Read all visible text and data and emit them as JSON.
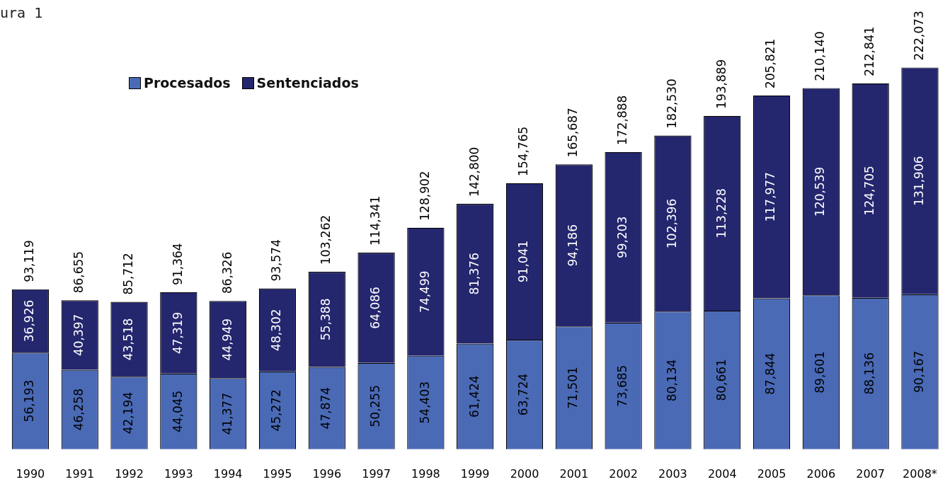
{
  "chart_data": {
    "type": "bar",
    "title": "ura 1",
    "stacked": true,
    "legend": "top left",
    "categories": [
      "1990",
      "1991",
      "1992",
      "1993",
      "1994",
      "1995",
      "1996",
      "1997",
      "1998",
      "1999",
      "2000",
      "2001",
      "2002",
      "2003",
      "2004",
      "2005",
      "2006",
      "2007",
      "2008*"
    ],
    "series": [
      {
        "name": "Procesados",
        "color": "#4a6ab6",
        "values": [
          56193,
          46258,
          42194,
          44045,
          41377,
          45272,
          47874,
          50255,
          54403,
          61424,
          63724,
          71501,
          73685,
          80134,
          80661,
          87844,
          89601,
          88136,
          90167
        ],
        "value_labels": [
          "56,193",
          "46,258",
          "42,194",
          "44,045",
          "41,377",
          "45,272",
          "47,874",
          "50,255",
          "54,403",
          "61,424",
          "63,724",
          "71,501",
          "73,685",
          "80,134",
          "80,661",
          "87,844",
          "89,601",
          "88,136",
          "90,167"
        ]
      },
      {
        "name": "Sentenciados",
        "color": "#24266e",
        "values": [
          36926,
          40397,
          43518,
          47319,
          44949,
          48302,
          55388,
          64086,
          74499,
          81376,
          91041,
          94186,
          99203,
          102396,
          113228,
          117977,
          120539,
          124705,
          131906
        ],
        "value_labels": [
          "36,926",
          "40,397",
          "43,518",
          "47,319",
          "44,949",
          "48,302",
          "55,388",
          "64,086",
          "74,499",
          "81,376",
          "91,041",
          "94,186",
          "99,203",
          "102,396",
          "113,228",
          "117,977",
          "120,539",
          "124,705",
          "131,906"
        ]
      }
    ],
    "totals": [
      "93,119",
      "86,655",
      "85,712",
      "91,364",
      "86,326",
      "93,574",
      "103,262",
      "114,341",
      "128,902",
      "142,800",
      "154,765",
      "165,687",
      "172,888",
      "182,530",
      "193,889",
      "205,821",
      "210,140",
      "212,841",
      "222,073"
    ]
  }
}
